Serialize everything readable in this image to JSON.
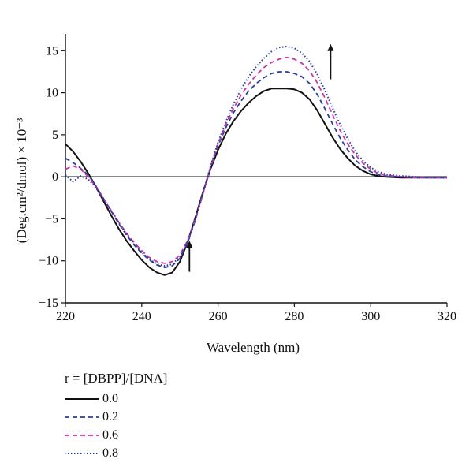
{
  "chart_data": {
    "type": "line",
    "title": "",
    "xlabel": "Wavelength (nm)",
    "ylabel": "(Deg.cm²/dmol) × 10⁻³",
    "xlim": [
      220,
      320
    ],
    "ylim": [
      -15,
      17
    ],
    "xticks": [
      220,
      240,
      260,
      280,
      300,
      320
    ],
    "yticks": [
      -15,
      -10,
      -5,
      0,
      5,
      10,
      15
    ],
    "xtick_labels": [
      "220",
      "240",
      "260",
      "280",
      "300",
      "320"
    ],
    "ytick_labels": [
      "−15",
      "−10",
      "−5",
      "0",
      "5",
      "10",
      "15"
    ],
    "grid": false,
    "legend_title": "r = [DBPP]/[DNA]",
    "legend_position": "below",
    "series": [
      {
        "name": "0.0",
        "color": "#111111",
        "dash": "solid",
        "points": [
          [
            220,
            3.9
          ],
          [
            222,
            3.0
          ],
          [
            224,
            1.8
          ],
          [
            226,
            0.4
          ],
          [
            228,
            -1.2
          ],
          [
            230,
            -2.9
          ],
          [
            232,
            -4.6
          ],
          [
            234,
            -6.2
          ],
          [
            236,
            -7.6
          ],
          [
            238,
            -8.8
          ],
          [
            240,
            -9.9
          ],
          [
            242,
            -10.8
          ],
          [
            244,
            -11.4
          ],
          [
            246,
            -11.7
          ],
          [
            248,
            -11.4
          ],
          [
            250,
            -10.1
          ],
          [
            252,
            -7.8
          ],
          [
            254,
            -4.9
          ],
          [
            256,
            -1.9
          ],
          [
            258,
            0.9
          ],
          [
            260,
            3.2
          ],
          [
            262,
            5.1
          ],
          [
            264,
            6.6
          ],
          [
            266,
            7.8
          ],
          [
            268,
            8.8
          ],
          [
            270,
            9.6
          ],
          [
            272,
            10.2
          ],
          [
            274,
            10.5
          ],
          [
            276,
            10.5
          ],
          [
            278,
            10.5
          ],
          [
            280,
            10.4
          ],
          [
            282,
            10.0
          ],
          [
            284,
            9.2
          ],
          [
            286,
            7.9
          ],
          [
            288,
            6.3
          ],
          [
            290,
            4.7
          ],
          [
            292,
            3.3
          ],
          [
            294,
            2.2
          ],
          [
            296,
            1.3
          ],
          [
            298,
            0.7
          ],
          [
            300,
            0.3
          ],
          [
            302,
            0.1
          ],
          [
            304,
            0.0
          ],
          [
            308,
            -0.1
          ],
          [
            312,
            -0.1
          ],
          [
            316,
            -0.1
          ],
          [
            320,
            -0.1
          ]
        ]
      },
      {
        "name": "0.2",
        "color": "#2b3d9a",
        "dash": "dashed",
        "points": [
          [
            220,
            2.2
          ],
          [
            222,
            1.7
          ],
          [
            224,
            1.0
          ],
          [
            226,
            0.2
          ],
          [
            228,
            -1.1
          ],
          [
            230,
            -2.6
          ],
          [
            232,
            -4.1
          ],
          [
            234,
            -5.6
          ],
          [
            236,
            -6.9
          ],
          [
            238,
            -8.1
          ],
          [
            240,
            -9.1
          ],
          [
            242,
            -9.9
          ],
          [
            244,
            -10.5
          ],
          [
            246,
            -10.8
          ],
          [
            248,
            -10.6
          ],
          [
            250,
            -9.7
          ],
          [
            252,
            -7.9
          ],
          [
            254,
            -5.2
          ],
          [
            256,
            -2.1
          ],
          [
            258,
            1.0
          ],
          [
            260,
            3.7
          ],
          [
            262,
            5.8
          ],
          [
            264,
            7.6
          ],
          [
            266,
            9.0
          ],
          [
            268,
            10.2
          ],
          [
            270,
            11.1
          ],
          [
            272,
            11.8
          ],
          [
            274,
            12.3
          ],
          [
            276,
            12.5
          ],
          [
            278,
            12.5
          ],
          [
            280,
            12.3
          ],
          [
            282,
            11.9
          ],
          [
            284,
            11.1
          ],
          [
            286,
            9.8
          ],
          [
            288,
            8.1
          ],
          [
            290,
            6.3
          ],
          [
            292,
            4.6
          ],
          [
            294,
            3.2
          ],
          [
            296,
            2.0
          ],
          [
            298,
            1.2
          ],
          [
            300,
            0.6
          ],
          [
            302,
            0.3
          ],
          [
            304,
            0.1
          ],
          [
            308,
            0.0
          ],
          [
            312,
            -0.1
          ],
          [
            316,
            -0.1
          ],
          [
            320,
            -0.1
          ]
        ]
      },
      {
        "name": "0.6",
        "color": "#cc33aa",
        "dash": "dashed",
        "points": [
          [
            220,
            0.9
          ],
          [
            222,
            1.3
          ],
          [
            224,
            0.9
          ],
          [
            226,
            0.0
          ],
          [
            228,
            -1.2
          ],
          [
            230,
            -2.6
          ],
          [
            232,
            -4.0
          ],
          [
            234,
            -5.4
          ],
          [
            236,
            -6.7
          ],
          [
            238,
            -7.8
          ],
          [
            240,
            -8.8
          ],
          [
            242,
            -9.6
          ],
          [
            244,
            -10.1
          ],
          [
            246,
            -10.3
          ],
          [
            248,
            -10.1
          ],
          [
            250,
            -9.3
          ],
          [
            252,
            -7.6
          ],
          [
            254,
            -5.1
          ],
          [
            256,
            -2.1
          ],
          [
            258,
            1.1
          ],
          [
            260,
            3.9
          ],
          [
            262,
            6.2
          ],
          [
            264,
            8.1
          ],
          [
            266,
            9.7
          ],
          [
            268,
            11.0
          ],
          [
            270,
            12.1
          ],
          [
            272,
            13.0
          ],
          [
            274,
            13.6
          ],
          [
            276,
            14.0
          ],
          [
            278,
            14.2
          ],
          [
            280,
            14.0
          ],
          [
            282,
            13.5
          ],
          [
            284,
            12.6
          ],
          [
            286,
            11.2
          ],
          [
            288,
            9.4
          ],
          [
            290,
            7.4
          ],
          [
            292,
            5.5
          ],
          [
            294,
            3.9
          ],
          [
            296,
            2.6
          ],
          [
            298,
            1.6
          ],
          [
            300,
            0.9
          ],
          [
            302,
            0.4
          ],
          [
            304,
            0.2
          ],
          [
            308,
            0.0
          ],
          [
            312,
            -0.1
          ],
          [
            316,
            -0.1
          ],
          [
            320,
            -0.1
          ]
        ]
      },
      {
        "name": "0.8",
        "color": "#2b3d9a",
        "dash": "dotted",
        "points": [
          [
            220,
            0.2
          ],
          [
            222,
            -0.6
          ],
          [
            224,
            0.1
          ],
          [
            226,
            -0.3
          ],
          [
            228,
            -1.3
          ],
          [
            230,
            -2.7
          ],
          [
            232,
            -4.1
          ],
          [
            234,
            -5.5
          ],
          [
            236,
            -6.8
          ],
          [
            238,
            -8.0
          ],
          [
            240,
            -9.0
          ],
          [
            242,
            -9.8
          ],
          [
            244,
            -10.4
          ],
          [
            246,
            -10.6
          ],
          [
            248,
            -10.4
          ],
          [
            250,
            -9.5
          ],
          [
            252,
            -7.7
          ],
          [
            254,
            -5.1
          ],
          [
            256,
            -2.0
          ],
          [
            258,
            1.2
          ],
          [
            260,
            4.1
          ],
          [
            262,
            6.5
          ],
          [
            264,
            8.6
          ],
          [
            266,
            10.4
          ],
          [
            268,
            11.9
          ],
          [
            270,
            13.1
          ],
          [
            272,
            14.1
          ],
          [
            274,
            14.9
          ],
          [
            276,
            15.4
          ],
          [
            278,
            15.5
          ],
          [
            280,
            15.3
          ],
          [
            282,
            14.7
          ],
          [
            284,
            13.7
          ],
          [
            286,
            12.2
          ],
          [
            288,
            10.3
          ],
          [
            290,
            8.2
          ],
          [
            292,
            6.2
          ],
          [
            294,
            4.5
          ],
          [
            296,
            3.0
          ],
          [
            298,
            1.9
          ],
          [
            300,
            1.1
          ],
          [
            302,
            0.6
          ],
          [
            304,
            0.3
          ],
          [
            308,
            0.1
          ],
          [
            312,
            0.0
          ],
          [
            316,
            -0.1
          ],
          [
            320,
            -0.1
          ]
        ]
      }
    ],
    "annotations": [
      {
        "type": "arrow",
        "direction": "up",
        "x": 289.5,
        "y_from": 11.6,
        "y_to": 15.8
      },
      {
        "type": "arrow",
        "direction": "up",
        "x": 252.5,
        "y_from": -11.3,
        "y_to": -7.6
      }
    ]
  }
}
